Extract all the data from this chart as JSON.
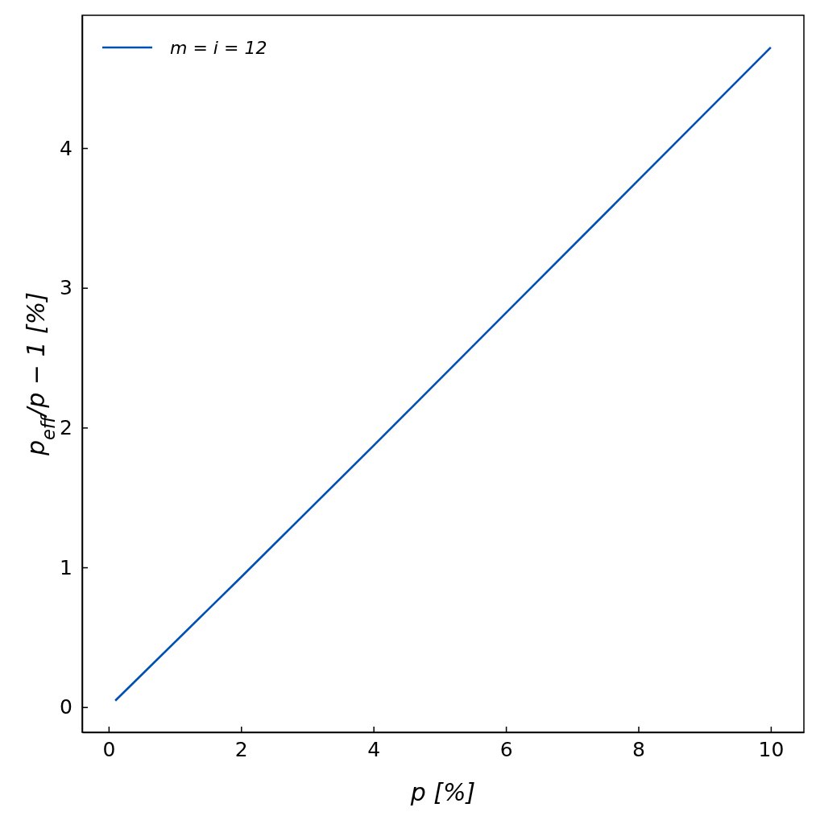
{
  "chart_data": {
    "type": "line",
    "xlabel": "p   [%]",
    "ylabel": "p$_{eff}$/p − 1   [%]",
    "x": [
      0.1,
      2,
      4,
      6,
      8,
      10
    ],
    "series": [
      {
        "name": "m = i = 12",
        "color": "#0050b4",
        "values": [
          0.046,
          0.93,
          1.87,
          2.82,
          3.77,
          4.72
        ]
      }
    ],
    "xlim": [
      -0.4,
      10.5
    ],
    "ylim": [
      -0.18,
      4.95
    ],
    "xticks": [
      0,
      2,
      4,
      6,
      8,
      10
    ],
    "yticks": [
      0,
      1,
      2,
      3,
      4
    ],
    "legend": "top left",
    "grid": false,
    "marker": "none",
    "line_style": "solid"
  }
}
